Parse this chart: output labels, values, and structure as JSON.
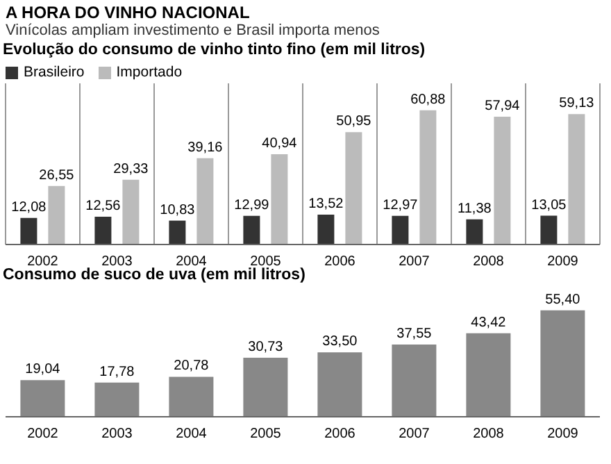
{
  "chart_data": [
    {
      "type": "other",
      "title": "A HORA DO VINHO NACIONAL",
      "subtitle": "Vinícolas ampliam investimento e Brasil importa menos"
    },
    {
      "type": "bar",
      "title": "Evolução do consumo de vinho tinto fino (em mil litros)",
      "categories": [
        "2002",
        "2003",
        "2004",
        "2005",
        "2006",
        "2007",
        "2008",
        "2009"
      ],
      "legend": "top left",
      "grid": "x",
      "series": [
        {
          "name": "Brasileiro",
          "color": "#333333",
          "values": [
            12.08,
            12.56,
            10.83,
            12.99,
            13.52,
            12.97,
            11.38,
            13.05
          ],
          "value_labels": [
            "12,08",
            "12,56",
            "10,83",
            "12,99",
            "13,52",
            "12,97",
            "11,38",
            "13,05"
          ]
        },
        {
          "name": "Importado",
          "color": "#bbbbbb",
          "values": [
            26.55,
            29.33,
            39.16,
            40.94,
            50.95,
            60.88,
            57.94,
            59.13
          ],
          "value_labels": [
            "26,55",
            "29,33",
            "39,16",
            "40,94",
            "50,95",
            "60,88",
            "57,94",
            "59,13"
          ]
        }
      ]
    },
    {
      "type": "bar",
      "title": "Consumo de suco de uva (em mil litros)",
      "categories": [
        "2002",
        "2003",
        "2004",
        "2005",
        "2006",
        "2007",
        "2008",
        "2009"
      ],
      "color": "#888888",
      "values": [
        19.04,
        17.78,
        20.78,
        30.73,
        33.5,
        37.55,
        43.42,
        55.4
      ],
      "value_labels": [
        "19,04",
        "17,78",
        "20,78",
        "30,73",
        "33,50",
        "37,55",
        "43,42",
        "55,40"
      ]
    }
  ]
}
